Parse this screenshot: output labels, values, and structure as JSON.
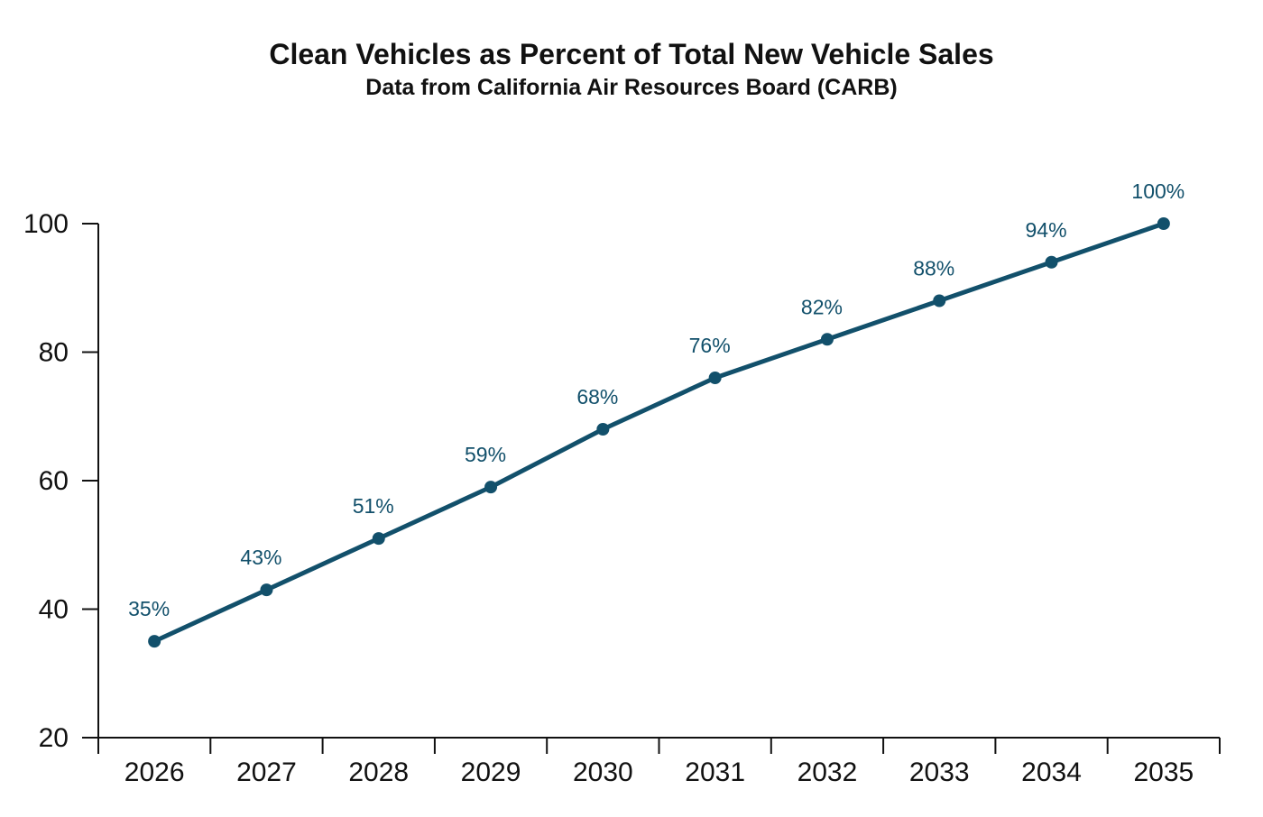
{
  "chart_data": {
    "type": "line",
    "title": "Clean Vehicles as Percent of Total New Vehicle Sales",
    "subtitle": "Data from California Air Resources Board (CARB)",
    "xlabel": "",
    "ylabel": "",
    "categories": [
      "2026",
      "2027",
      "2028",
      "2029",
      "2030",
      "2031",
      "2032",
      "2033",
      "2034",
      "2035"
    ],
    "series": [
      {
        "name": "Clean vehicles (%)",
        "values": [
          35,
          43,
          51,
          59,
          68,
          76,
          82,
          88,
          94,
          100
        ],
        "labels": [
          "35%",
          "43%",
          "51%",
          "59%",
          "68%",
          "76%",
          "82%",
          "88%",
          "94%",
          "100%"
        ]
      }
    ],
    "ylim": [
      20,
      100
    ],
    "yticks": [
      20,
      40,
      60,
      80,
      100
    ],
    "grid": false,
    "legend": "none",
    "line_color": "#12506b"
  }
}
